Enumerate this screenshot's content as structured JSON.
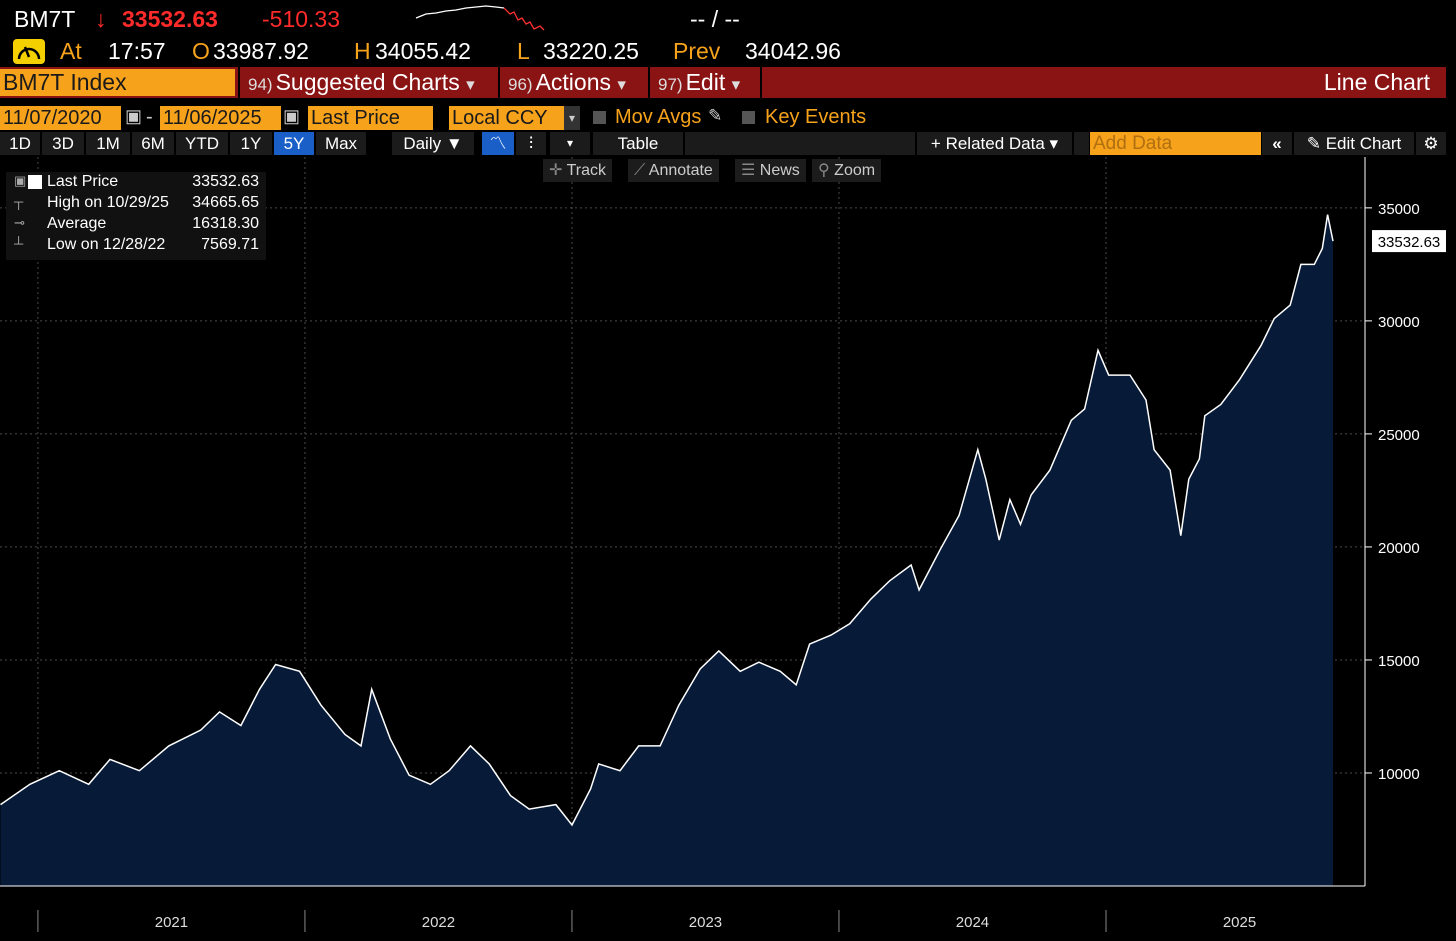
{
  "header": {
    "symbol": "BM7T",
    "arrow": "↓",
    "last": "33532.63",
    "change": "-510.33",
    "bid_ask": "-- / --",
    "at_label": "At",
    "time": "17:57",
    "open_label": "O",
    "open": "33987.92",
    "high_label": "H",
    "high": "34055.42",
    "low_label": "L",
    "low": "33220.25",
    "prev_label": "Prev",
    "prev": "34042.96"
  },
  "menu": {
    "ticker": "BM7T Index",
    "items": [
      {
        "code": "94)",
        "label": "Suggested Charts"
      },
      {
        "code": "96)",
        "label": "Actions"
      },
      {
        "code": "97)",
        "label": "Edit"
      }
    ],
    "chart_type": "Line Chart"
  },
  "controls": {
    "start_date": "11/07/2020",
    "dash": "-",
    "end_date": "11/06/2025",
    "field": "Last Price",
    "currency": "Local CCY",
    "mov_avgs": "Mov Avgs",
    "key_events": "Key Events"
  },
  "toolbar": {
    "ranges": [
      "1D",
      "3D",
      "1M",
      "6M",
      "YTD",
      "1Y",
      "5Y",
      "Max"
    ],
    "selected": "5Y",
    "frequency": "Daily",
    "table": "Table",
    "related": "Related Data",
    "add_data": "Add Data",
    "edit_chart": "Edit Chart"
  },
  "chart_tools": [
    "Track",
    "Annotate",
    "News",
    "Zoom"
  ],
  "legend": [
    {
      "label": "Last Price",
      "value": "33532.63"
    },
    {
      "label": "High on 10/29/25",
      "value": "34665.65"
    },
    {
      "label": "Average",
      "value": "16318.30"
    },
    {
      "label": "Low on 12/28/22",
      "value": "7569.71"
    }
  ],
  "chart_data": {
    "type": "area",
    "x": [
      2020.86,
      2020.97,
      2021.08,
      2021.19,
      2021.27,
      2021.38,
      2021.49,
      2021.61,
      2021.68,
      2021.76,
      2021.83,
      2021.89,
      2021.98,
      2022.06,
      2022.15,
      2022.21,
      2022.25,
      2022.32,
      2022.39,
      2022.47,
      2022.54,
      2022.62,
      2022.69,
      2022.77,
      2022.84,
      2022.94,
      2023.0,
      2023.07,
      2023.1,
      2023.18,
      2023.25,
      2023.33,
      2023.4,
      2023.48,
      2023.55,
      2023.63,
      2023.7,
      2023.78,
      2023.84,
      2023.89,
      2023.97,
      2024.04,
      2024.12,
      2024.19,
      2024.27,
      2024.3,
      2024.38,
      2024.45,
      2024.52,
      2024.55,
      2024.6,
      2024.64,
      2024.68,
      2024.72,
      2024.79,
      2024.87,
      2024.92,
      2024.97,
      2025.01,
      2025.09,
      2025.15,
      2025.18,
      2025.24,
      2025.28,
      2025.31,
      2025.35,
      2025.37,
      2025.43,
      2025.5,
      2025.58,
      2025.63,
      2025.69,
      2025.73,
      2025.78,
      2025.81,
      2025.83,
      2025.85
    ],
    "series": [
      {
        "name": "Last Price",
        "color": "#ffffff",
        "fill": "#071b38",
        "values": [
          8600,
          9500,
          10100,
          9500,
          10600,
          10100,
          11200,
          11900,
          12700,
          12100,
          13700,
          14800,
          14500,
          13000,
          11700,
          11200,
          13700,
          11500,
          9900,
          9500,
          10100,
          11200,
          10400,
          9000,
          8400,
          8600,
          7700,
          9300,
          10400,
          10100,
          11200,
          11200,
          13000,
          14600,
          15400,
          14500,
          14900,
          14500,
          13900,
          15700,
          16100,
          16600,
          17700,
          18500,
          19200,
          18100,
          19900,
          21400,
          24300,
          23000,
          20300,
          22100,
          21000,
          22300,
          23400,
          25600,
          26100,
          28700,
          27600,
          27600,
          26500,
          24300,
          23400,
          20500,
          23000,
          23900,
          25800,
          26300,
          27400,
          28900,
          30100,
          30700,
          32500,
          32500,
          33200,
          34700,
          33530
        ]
      }
    ],
    "last_value_label": "33532.63",
    "xlim": [
      2020.858,
      2025.97
    ],
    "xticks": [
      2021,
      2022,
      2023,
      2024,
      2025
    ],
    "ylim": [
      5000,
      37250
    ],
    "yticks": [
      10000,
      15000,
      20000,
      25000,
      30000,
      35000
    ],
    "grid": true
  }
}
